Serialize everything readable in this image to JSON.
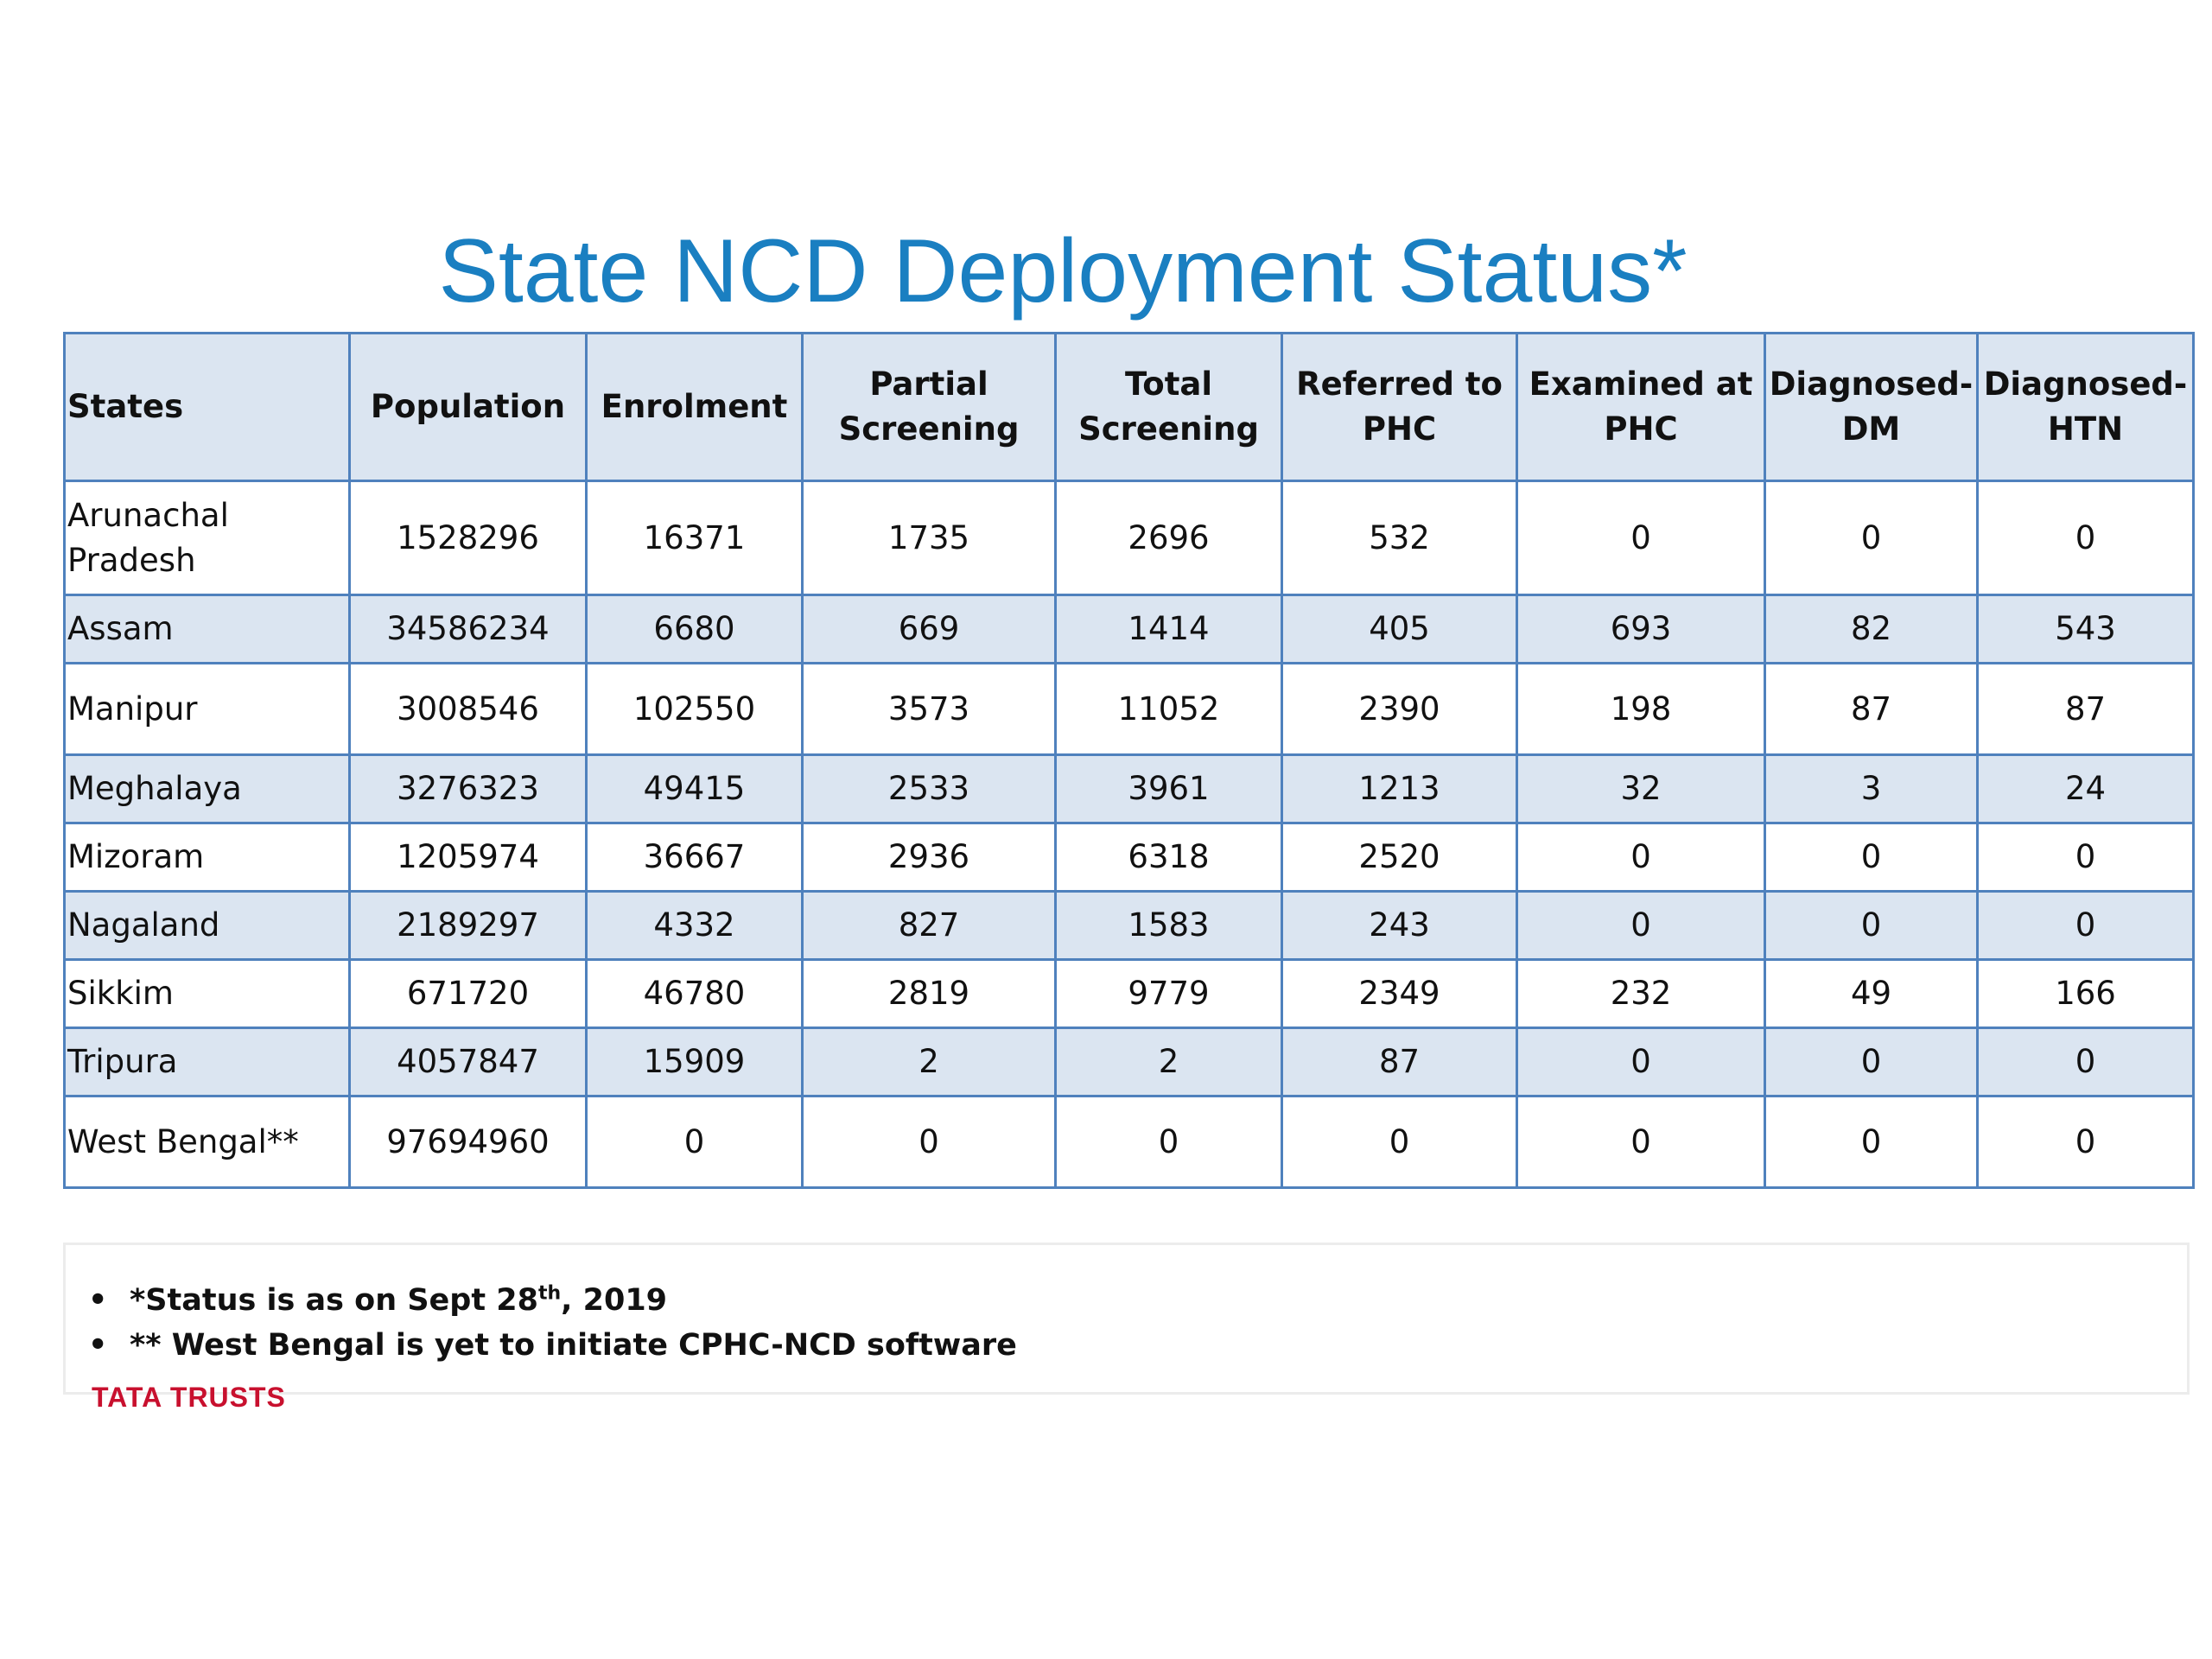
{
  "title": "State NCD Deployment Status*",
  "table": {
    "headers": [
      [
        "States"
      ],
      [
        "Population"
      ],
      [
        "Enrolment"
      ],
      [
        "Partial",
        "Screening"
      ],
      [
        "Total",
        "Screening"
      ],
      [
        "Referred to",
        "PHC"
      ],
      [
        "Examined at",
        "PHC"
      ],
      [
        "Diagnosed-",
        "DM"
      ],
      [
        "Diagnosed-",
        "HTN"
      ]
    ],
    "rows": [
      [
        [
          "Arunachal",
          "Pradesh"
        ],
        "1528296",
        "16371",
        "1735",
        "2696",
        "532",
        "0",
        "0",
        "0"
      ],
      [
        "Assam",
        "34586234",
        "6680",
        "669",
        "1414",
        "405",
        "693",
        "82",
        "543"
      ],
      [
        "Manipur",
        "3008546",
        "102550",
        "3573",
        "11052",
        "2390",
        "198",
        "87",
        "87"
      ],
      [
        "Meghalaya",
        "3276323",
        "49415",
        "2533",
        "3961",
        "1213",
        "32",
        "3",
        "24"
      ],
      [
        "Mizoram",
        "1205974",
        "36667",
        "2936",
        "6318",
        "2520",
        "0",
        "0",
        "0"
      ],
      [
        "Nagaland",
        "2189297",
        "4332",
        "827",
        "1583",
        "243",
        "0",
        "0",
        "0"
      ],
      [
        "Sikkim",
        "671720",
        "46780",
        "2819",
        "9779",
        "2349",
        "232",
        "49",
        "166"
      ],
      [
        "Tripura",
        "4057847",
        "15909",
        "2",
        "2",
        "87",
        "0",
        "0",
        "0"
      ],
      [
        "West Bengal**",
        "97694960",
        "0",
        "0",
        "0",
        "0",
        "0",
        "0",
        "0"
      ]
    ]
  },
  "notes": {
    "bullet": "•",
    "note1_prefix": "*Status is as on Sept 28",
    "note1_sup": "th",
    "note1_suffix": ", 2019",
    "note2": "** West Bengal is yet to initiate CPHC-NCD software"
  },
  "logo": "TATA TRUSTS",
  "colors": {
    "title": "#1a7fc1",
    "table_border": "#4f81bd",
    "band_fill": "#dbe5f1",
    "logo": "#c8102e"
  }
}
